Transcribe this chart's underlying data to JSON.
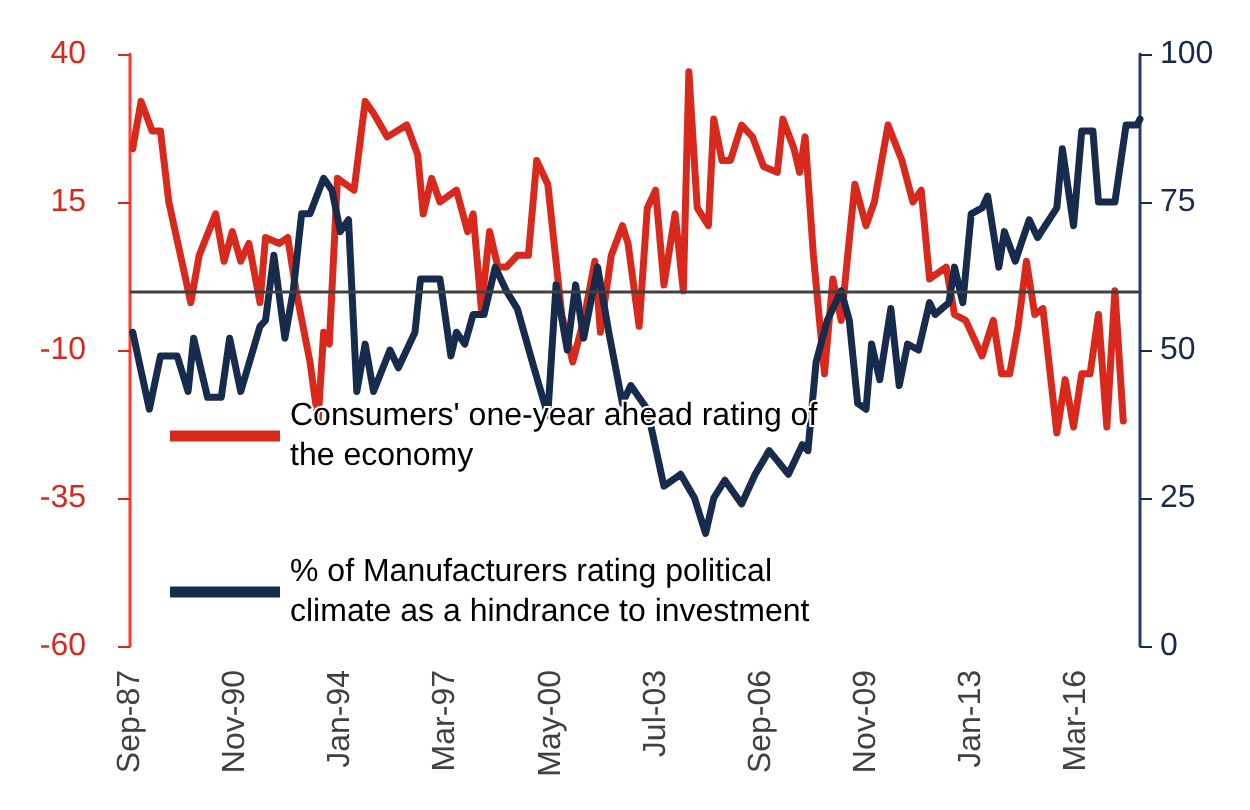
{
  "chart_data": {
    "type": "line",
    "xlim": [
      "1987-09",
      "2018-02"
    ],
    "xticks": [
      {
        "value": "1987-09",
        "label": "Sep-87"
      },
      {
        "value": "1990-11",
        "label": "Nov-90"
      },
      {
        "value": "1994-01",
        "label": "Jan-94"
      },
      {
        "value": "1997-03",
        "label": "Mar-97"
      },
      {
        "value": "2000-05",
        "label": "May-00"
      },
      {
        "value": "2003-07",
        "label": "Jul-03"
      },
      {
        "value": "2006-09",
        "label": "Sep-06"
      },
      {
        "value": "2009-11",
        "label": "Nov-09"
      },
      {
        "value": "2013-01",
        "label": "Jan-13"
      },
      {
        "value": "2016-03",
        "label": "Mar-16"
      }
    ],
    "ylim": [
      -60,
      40
    ],
    "yticks": [
      -60,
      -35,
      -10,
      15,
      40
    ],
    "y2lim": [
      0,
      100
    ],
    "y2ticks": [
      0,
      25,
      50,
      75,
      100
    ],
    "grid": false,
    "legend": "bottom left",
    "marker": "none",
    "line_style": "solid",
    "ref_lines": [
      {
        "axis": "y",
        "value": 0,
        "color": "#404040"
      }
    ],
    "series": [
      {
        "name": "Consumers' one-year ahead rating of the economy",
        "color": "#d9291c",
        "x": [
          "1987-10",
          "1988-01",
          "1988-05",
          "1988-08",
          "1988-11",
          "1989-07",
          "1989-10",
          "1990-04",
          "1990-07",
          "1990-10",
          "1991-01",
          "1991-04",
          "1991-08",
          "1991-10",
          "1992-03",
          "1992-06",
          "1992-09",
          "1993-02",
          "1993-05",
          "1993-07",
          "1993-09",
          "1993-12",
          "1994-03",
          "1994-06",
          "1994-10",
          "1995-01",
          "1995-06",
          "1996-01",
          "1996-05",
          "1996-07",
          "1996-10",
          "1997-01",
          "1997-07",
          "1997-11",
          "1998-01",
          "1998-04",
          "1998-07",
          "1998-10",
          "1999-01",
          "1999-05",
          "1999-09",
          "1999-12",
          "2000-04",
          "2000-09",
          "2001-01",
          "2001-05",
          "2001-09",
          "2001-11",
          "2002-03",
          "2002-07",
          "2002-09",
          "2003-01",
          "2003-04",
          "2003-07",
          "2003-10",
          "2004-02",
          "2004-05",
          "2004-07",
          "2004-10",
          "2005-02",
          "2005-04",
          "2005-07",
          "2005-10",
          "2006-02",
          "2006-06",
          "2006-10",
          "2007-03",
          "2007-05",
          "2007-09",
          "2007-11",
          "2008-01",
          "2008-04",
          "2008-08",
          "2008-11",
          "2009-02",
          "2009-07",
          "2009-11",
          "2010-02",
          "2010-07",
          "2010-12",
          "2011-04",
          "2011-07",
          "2011-10",
          "2012-04",
          "2012-07",
          "2012-11",
          "2013-05",
          "2013-09",
          "2013-12",
          "2014-03",
          "2014-06",
          "2014-09",
          "2014-12",
          "2015-03",
          "2015-08",
          "2015-11",
          "2016-02",
          "2016-05",
          "2016-08",
          "2016-11",
          "2017-02",
          "2017-05",
          "2017-08"
        ],
        "values": [
          24,
          32,
          27,
          27,
          15,
          -2,
          6,
          13,
          5,
          10,
          5,
          8,
          -2,
          9,
          8,
          9,
          0,
          -12,
          -22,
          -7,
          -9,
          19,
          18,
          17,
          32,
          30,
          26,
          28,
          23,
          13,
          19,
          15,
          17,
          10,
          13,
          -3,
          10,
          4,
          4,
          6,
          6,
          22,
          18,
          -4,
          -12,
          -5,
          5,
          -7,
          6,
          11,
          8,
          -6,
          14,
          17,
          1,
          13,
          0,
          37,
          14,
          11,
          29,
          22,
          22,
          28,
          26,
          21,
          20,
          29,
          24,
          20,
          26,
          6,
          -14,
          2,
          -5,
          18,
          11,
          15,
          28,
          22,
          15,
          17,
          2,
          4,
          -4,
          -5,
          -11,
          -5,
          -14,
          -14,
          -6,
          5,
          -4,
          -3,
          -24,
          -15,
          -23,
          -14,
          -14,
          -4,
          -23,
          0,
          -22
        ]
      },
      {
        "name": "% of Manufacturers rating political climate as a hindrance to investment",
        "color": "#172b4d",
        "axis": "y2",
        "x": [
          "1987-10",
          "1988-04",
          "1988-08",
          "1989-02",
          "1989-06",
          "1989-08",
          "1990-01",
          "1990-06",
          "1990-09",
          "1991-01",
          "1991-08",
          "1991-10",
          "1992-01",
          "1992-05",
          "1992-08",
          "1992-11",
          "1993-02",
          "1993-07",
          "1993-10",
          "1994-01",
          "1994-04",
          "1994-07",
          "1994-10",
          "1995-01",
          "1995-07",
          "1995-10",
          "1996-04",
          "1996-06",
          "1997-01",
          "1997-05",
          "1997-07",
          "1997-10",
          "1998-01",
          "1998-05",
          "1998-09",
          "1999-01",
          "1999-05",
          "1999-11",
          "2000-04",
          "2000-07",
          "2000-11",
          "2001-02",
          "2001-05",
          "2001-10",
          "2002-02",
          "2002-07",
          "2002-10",
          "2003-04",
          "2003-10",
          "2004-04",
          "2004-09",
          "2005-01",
          "2005-04",
          "2005-08",
          "2006-02",
          "2006-07",
          "2006-12",
          "2007-07",
          "2007-12",
          "2008-02",
          "2008-05",
          "2008-09",
          "2009-02",
          "2009-05",
          "2009-08",
          "2009-11",
          "2010-01",
          "2010-04",
          "2010-08",
          "2010-11",
          "2011-02",
          "2011-06",
          "2011-10",
          "2011-12",
          "2012-05",
          "2012-07",
          "2012-10",
          "2013-01",
          "2013-05",
          "2013-07",
          "2013-11",
          "2014-01",
          "2014-05",
          "2014-10",
          "2015-01",
          "2015-08",
          "2015-10",
          "2016-02",
          "2016-05",
          "2016-09",
          "2016-11",
          "2017-05",
          "2017-09",
          "2018-01",
          "2018-02"
        ],
        "values": [
          53,
          40,
          49,
          49,
          43,
          52,
          42,
          42,
          52,
          43,
          54,
          55,
          66,
          52,
          60,
          73,
          73,
          79,
          77,
          70,
          72,
          43,
          51,
          43,
          50,
          47,
          53,
          62,
          62,
          49,
          53,
          51,
          56,
          56,
          64,
          60,
          57,
          47,
          39,
          61,
          50,
          61,
          52,
          64,
          53,
          41,
          44,
          40,
          27,
          29,
          25,
          19,
          25,
          28,
          24,
          29,
          33,
          29,
          34,
          33,
          48,
          55,
          60,
          55,
          41,
          40,
          51,
          45,
          57,
          44,
          51,
          50,
          58,
          56,
          58,
          64,
          58,
          73,
          74,
          76,
          64,
          70,
          65,
          72,
          69,
          74,
          84,
          71,
          87,
          87,
          75,
          75,
          88,
          88,
          89
        ]
      }
    ]
  }
}
